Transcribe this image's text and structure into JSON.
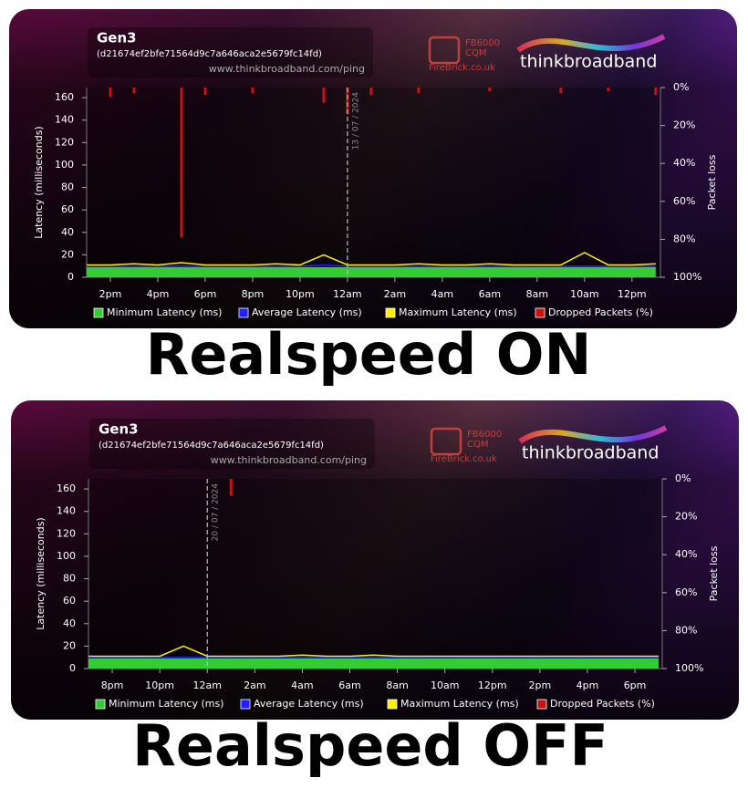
{
  "chart_data": [
    {
      "type": "line",
      "title": "Gen3",
      "subtitle": "(d21674ef2bfe71564d9c7a646aca2e5679fc14fd)",
      "source": "www.thinkbroadband.com/ping",
      "logos": [
        "FB6000",
        "CQM",
        "FireBrick.co.uk",
        "thinkbroadband"
      ],
      "caption": "Realspeed ON",
      "y_label": "Latency (milliseconds)",
      "y2_label": "Packet loss",
      "markers": [
        {
          "x": 24,
          "label": "13 / 07 / 2024"
        }
      ],
      "x": [
        13,
        14,
        15,
        16,
        17,
        18,
        19,
        20,
        21,
        22,
        23,
        24,
        25,
        26,
        27,
        28,
        29,
        30,
        31,
        32,
        33,
        34,
        35,
        36,
        37
      ],
      "xlim": [
        13,
        37.2
      ],
      "xticks": [
        {
          "value": 14,
          "label": "2pm"
        },
        {
          "value": 16,
          "label": "4pm"
        },
        {
          "value": 18,
          "label": "6pm"
        },
        {
          "value": 20,
          "label": "8pm"
        },
        {
          "value": 22,
          "label": "10pm"
        },
        {
          "value": 24,
          "label": "12am"
        },
        {
          "value": 26,
          "label": "2am"
        },
        {
          "value": 28,
          "label": "4am"
        },
        {
          "value": 30,
          "label": "6am"
        },
        {
          "value": 32,
          "label": "8am"
        },
        {
          "value": 34,
          "label": "10am"
        },
        {
          "value": 36,
          "label": "12pm"
        }
      ],
      "ylim": [
        0,
        169
      ],
      "yticks": [
        0,
        20,
        40,
        60,
        80,
        100,
        120,
        140,
        160
      ],
      "y2lim": [
        100,
        0
      ],
      "y2ticks": [
        {
          "value": 0,
          "label": "0%"
        },
        {
          "value": 20,
          "label": "20%"
        },
        {
          "value": 40,
          "label": "40%"
        },
        {
          "value": 60,
          "label": "60%"
        },
        {
          "value": 80,
          "label": "80%"
        },
        {
          "value": 100,
          "label": "100%"
        }
      ],
      "series": [
        {
          "name": "Minimum Latency (ms)",
          "color": "#33cc33",
          "values": [
            9,
            9,
            9,
            9,
            9,
            9,
            9,
            9,
            9,
            9,
            9,
            9,
            9,
            9,
            9,
            9,
            9,
            9,
            9,
            9,
            9,
            9,
            9,
            9,
            9
          ]
        },
        {
          "name": "Average Latency (ms)",
          "color": "#1f1fff",
          "values": [
            10,
            10,
            10,
            10,
            10,
            10,
            10,
            10,
            10,
            10,
            11,
            10,
            10,
            10,
            10,
            10,
            10,
            10,
            10,
            10,
            10,
            10,
            10,
            10,
            10
          ]
        },
        {
          "name": "Maximum Latency (ms)",
          "color": "#ffee00",
          "values": [
            11,
            11,
            12,
            11,
            13,
            11,
            11,
            11,
            12,
            11,
            20,
            11,
            11,
            11,
            12,
            11,
            11,
            12,
            11,
            11,
            11,
            22,
            11,
            11,
            12
          ]
        },
        {
          "name": "Dropped Packets (%)",
          "color": "#cc1111",
          "axis": "y2",
          "values": [
            0,
            5,
            3,
            0,
            79,
            4,
            0,
            3,
            0,
            0,
            8,
            14,
            4,
            0,
            3,
            0,
            0,
            2,
            0,
            0,
            3,
            0,
            2,
            0,
            4
          ]
        }
      ]
    },
    {
      "type": "line",
      "title": "Gen3",
      "subtitle": "(d21674ef2bfe71564d9c7a646aca2e5679fc14fd)",
      "source": "www.thinkbroadband.com/ping",
      "logos": [
        "FB6000",
        "CQM",
        "FireBrick.co.uk",
        "thinkbroadband"
      ],
      "caption": "Realspeed OFF",
      "y_label": "Latency (milliseconds)",
      "y2_label": "Packet loss",
      "markers": [
        {
          "x": 24,
          "label": "20 / 07 / 2024"
        }
      ],
      "x": [
        19,
        20,
        21,
        22,
        23,
        24,
        25,
        26,
        27,
        28,
        29,
        30,
        31,
        32,
        33,
        34,
        35,
        36,
        37,
        38,
        39,
        40,
        41,
        42,
        43
      ],
      "xlim": [
        19,
        43.15
      ],
      "xticks": [
        {
          "value": 20,
          "label": "8pm"
        },
        {
          "value": 22,
          "label": "10pm"
        },
        {
          "value": 24,
          "label": "12am"
        },
        {
          "value": 26,
          "label": "2am"
        },
        {
          "value": 28,
          "label": "4am"
        },
        {
          "value": 30,
          "label": "6am"
        },
        {
          "value": 32,
          "label": "8am"
        },
        {
          "value": 34,
          "label": "10am"
        },
        {
          "value": 36,
          "label": "12pm"
        },
        {
          "value": 38,
          "label": "2pm"
        },
        {
          "value": 40,
          "label": "4pm"
        },
        {
          "value": 42,
          "label": "6pm"
        }
      ],
      "ylim": [
        0,
        169
      ],
      "yticks": [
        0,
        20,
        40,
        60,
        80,
        100,
        120,
        140,
        160
      ],
      "y2lim": [
        100,
        0
      ],
      "y2ticks": [
        {
          "value": 0,
          "label": "0%"
        },
        {
          "value": 20,
          "label": "20%"
        },
        {
          "value": 40,
          "label": "40%"
        },
        {
          "value": 60,
          "label": "60%"
        },
        {
          "value": 80,
          "label": "80%"
        },
        {
          "value": 100,
          "label": "100%"
        }
      ],
      "series": [
        {
          "name": "Minimum Latency (ms)",
          "color": "#33cc33",
          "values": [
            9,
            9,
            9,
            9,
            9,
            9,
            9,
            9,
            9,
            9,
            9,
            9,
            9,
            9,
            9,
            9,
            9,
            9,
            9,
            9,
            9,
            9,
            9,
            9,
            9
          ]
        },
        {
          "name": "Average Latency (ms)",
          "color": "#1f1fff",
          "values": [
            10,
            10,
            10,
            10,
            10,
            10,
            10,
            10,
            10,
            10,
            10,
            10,
            10,
            10,
            10,
            10,
            10,
            10,
            10,
            10,
            10,
            10,
            10,
            10,
            10
          ]
        },
        {
          "name": "Maximum Latency (ms)",
          "color": "#ffee00",
          "values": [
            11,
            11,
            11,
            11,
            20,
            11,
            11,
            11,
            11,
            12,
            11,
            11,
            12,
            11,
            11,
            11,
            11,
            11,
            11,
            11,
            11,
            11,
            11,
            11,
            11
          ]
        },
        {
          "name": "Dropped Packets (%)",
          "color": "#cc1111",
          "axis": "y2",
          "values": [
            0,
            0,
            0,
            0,
            0,
            0,
            9,
            0,
            0,
            0,
            0,
            0,
            0,
            0,
            0,
            0,
            0,
            0,
            0,
            0,
            0,
            0,
            0,
            0,
            0
          ]
        }
      ]
    }
  ]
}
